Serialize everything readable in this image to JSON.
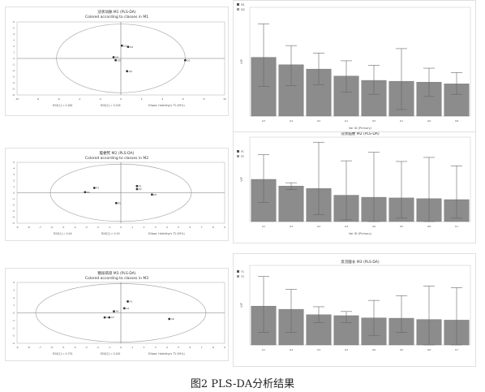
{
  "caption": "图2 PLS-DA分析结果",
  "chart_data": [
    {
      "type": "scatter",
      "title": "冠状动脉 M1 (PLS-DA)",
      "subtitle": "Colored according to classes in M1",
      "xlim": [
        -10,
        10
      ],
      "ylim": [
        -6,
        6
      ],
      "x_ticks": [
        "-10",
        "-8",
        "-6",
        "-4",
        "-2",
        "0",
        "2",
        "4",
        "6",
        "8",
        "10"
      ],
      "y_ticks": [
        "6",
        "5",
        "4",
        "3",
        "2",
        "1",
        "0",
        "-1",
        "-2",
        "-3",
        "-4",
        "-5",
        "-6"
      ],
      "points": [
        {
          "x": 0.1,
          "y": 2.1,
          "label": "Q3"
        },
        {
          "x": 0.7,
          "y": 1.9,
          "label": "Q2"
        },
        {
          "x": -0.7,
          "y": 0.2,
          "label": "Q4"
        },
        {
          "x": -0.5,
          "y": -0.3,
          "label": "Q5"
        },
        {
          "x": 0.6,
          "y": -2.1,
          "label": "Q6"
        },
        {
          "x": 6.2,
          "y": -0.3,
          "label": "Q1"
        }
      ],
      "footer": [
        "R2X[1] = 0.481",
        "R2X[2] = 0.226",
        "Ellipse: Hotelling's T2 (95%)"
      ],
      "legend": [
        "M1",
        "M2"
      ]
    },
    {
      "type": "bar",
      "title": "",
      "xlabel": "Var ID (Primary)",
      "ylabel": "VIP",
      "ylim": [
        0,
        2.5
      ],
      "categories": [
        "G3",
        "G4",
        "G2",
        "G1",
        "G5",
        "G7",
        "G6",
        "G8"
      ],
      "values": [
        1.35,
        1.18,
        1.08,
        0.92,
        0.82,
        0.8,
        0.78,
        0.74
      ],
      "error_low": [
        0.68,
        0.7,
        0.72,
        0.55,
        0.5,
        0.15,
        0.45,
        0.5
      ],
      "error_high": [
        2.12,
        1.62,
        1.45,
        1.27,
        1.17,
        1.55,
        1.1,
        1.0
      ]
    },
    {
      "type": "scatter",
      "title": "脑梗死 M2 (PLS-DA)",
      "subtitle": "Colored according to classes in M2",
      "xlim": [
        -9,
        9
      ],
      "ylim": [
        -5,
        5
      ],
      "x_ticks": [
        "-9",
        "-8",
        "-7",
        "-6",
        "-5",
        "-4",
        "-3",
        "-2",
        "-1",
        "0",
        "1",
        "2",
        "3",
        "4",
        "5",
        "6",
        "7",
        "8",
        "9"
      ],
      "y_ticks": [
        "5",
        "4",
        "3",
        "2",
        "1",
        "0",
        "-1",
        "-2",
        "-3",
        "-4",
        "-5"
      ],
      "points": [
        {
          "x": -2.3,
          "y": 0.8,
          "label": "P3"
        },
        {
          "x": -3.1,
          "y": 0.1,
          "label": "P4"
        },
        {
          "x": 1.4,
          "y": 1.1,
          "label": "P1"
        },
        {
          "x": 1.4,
          "y": 0.6,
          "label": "P2"
        },
        {
          "x": 2.7,
          "y": -0.3,
          "label": "P6"
        },
        {
          "x": -0.4,
          "y": -1.7,
          "label": "P5"
        }
      ],
      "footer": [
        "R2X[1] = 0.44",
        "R2X[2] = 0.19",
        "Ellipse: Hotelling's T2 (95%)"
      ],
      "legend": [
        "P1",
        "P2"
      ]
    },
    {
      "type": "bar",
      "title": "冠状脑梗 M2 (PLS-DA)",
      "xlabel": "Var ID (Primary)",
      "ylabel": "VIP",
      "ylim": [
        0,
        2.5
      ],
      "categories": [
        "G1",
        "G3",
        "G2",
        "G4",
        "G6",
        "G5",
        "G8",
        "G7"
      ],
      "values": [
        1.25,
        1.05,
        0.98,
        0.78,
        0.72,
        0.7,
        0.68,
        0.65
      ],
      "error_low": [
        0.56,
        0.95,
        0.2,
        0.05,
        -0.3,
        0.1,
        0.0,
        0.1
      ],
      "error_high": [
        1.98,
        1.15,
        2.35,
        1.8,
        2.05,
        1.78,
        1.9,
        1.65
      ]
    },
    {
      "type": "scatter",
      "title": "糖尿病肾 M3 (PLS-DA)",
      "subtitle": "Colored according to classes in M3",
      "xlim": [
        -9,
        9
      ],
      "ylim": [
        -4,
        4
      ],
      "x_ticks": [
        "-9",
        "-8",
        "-7",
        "-6",
        "-5",
        "-4",
        "-3",
        "-2",
        "-1",
        "0",
        "1",
        "2",
        "3",
        "4",
        "5",
        "6",
        "7",
        "8",
        "9"
      ],
      "y_ticks": [
        "4",
        "3",
        "2",
        "1",
        "0",
        "-1",
        "-2",
        "-3",
        "-4"
      ],
      "points": [
        {
          "x": 0.6,
          "y": 1.5,
          "label": "A1"
        },
        {
          "x": 0.3,
          "y": 0.6,
          "label": "A2"
        },
        {
          "x": -0.6,
          "y": 0.2,
          "label": "A4"
        },
        {
          "x": -1.0,
          "y": -0.6,
          "label": "A5"
        },
        {
          "x": -1.4,
          "y": -0.6,
          "label": "A3"
        },
        {
          "x": 4.2,
          "y": -0.8,
          "label": "A6"
        }
      ],
      "footer": [
        "R2X[1] = 0.751",
        "R2X[2] = 0.181",
        "Ellipse: Hotelling's T2 (95%)"
      ],
      "legend": [
        "Y1",
        "Y2"
      ]
    },
    {
      "type": "bar",
      "title": "反流酸长 M3 (PLS-DA)",
      "xlabel": "",
      "ylabel": "VIP",
      "ylim": [
        0,
        2.5
      ],
      "categories": [
        "G1",
        "G4",
        "G3",
        "G2",
        "G6",
        "G5",
        "G8",
        "G7"
      ],
      "values": [
        1.22,
        1.12,
        0.95,
        0.92,
        0.85,
        0.84,
        0.8,
        0.78
      ],
      "error_low": [
        0.4,
        0.4,
        0.7,
        0.7,
        0.3,
        0.4,
        -0.3,
        -0.2
      ],
      "error_high": [
        2.15,
        1.75,
        1.2,
        1.05,
        1.4,
        1.55,
        1.85,
        1.8
      ]
    }
  ]
}
